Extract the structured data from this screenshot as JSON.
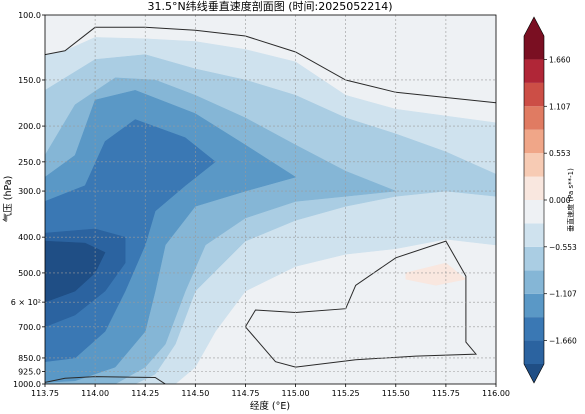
{
  "chart_data": {
    "type": "heatmap",
    "subtype": "filled-contour-cross-section",
    "title": "31.5°N纬线垂直速度剖面图 (时间:2025052214)",
    "xlabel": "经度 (°E)",
    "ylabel": "气压 (hPa)",
    "xlim": [
      113.75,
      116.0
    ],
    "ylim": [
      1000,
      100
    ],
    "y_scale": "log",
    "y_inverted": true,
    "grid": true,
    "x_ticks": [
      113.75,
      114.0,
      114.25,
      114.5,
      114.75,
      115.0,
      115.25,
      115.5,
      115.75,
      116.0
    ],
    "x_tick_labels": [
      "113.75",
      "114.00",
      "114.25",
      "114.50",
      "114.75",
      "115.00",
      "115.25",
      "115.50",
      "115.75",
      "116.00"
    ],
    "y_ticks": [
      100,
      150,
      200,
      250,
      300,
      400,
      500,
      600,
      700,
      850,
      925,
      1000
    ],
    "y_tick_labels": [
      "100.0",
      "150.0",
      "200.0",
      "250.0",
      "300.0",
      "400.0",
      "500.0",
      "6 × 10²",
      "700.0",
      "850.0",
      "925.0",
      "1000.0"
    ],
    "colorbar": {
      "label": "垂直速度 (Pa s**-1)",
      "ticks": [
        1.66,
        1.107,
        0.553,
        0.0,
        -0.553,
        -1.107,
        -1.66
      ],
      "tick_labels": [
        "1.660",
        "1.107",
        "0.553",
        "0.000",
        "−0.553",
        "−1.107",
        "−1.660"
      ],
      "vmin": -1.937,
      "vmax": 1.937,
      "levels": [
        -1.937,
        -1.66,
        -1.383,
        -1.107,
        -0.83,
        -0.553,
        -0.277,
        0.0,
        0.277,
        0.553,
        0.83,
        1.107,
        1.383,
        1.66,
        1.937
      ],
      "colors": [
        "#1f4e85",
        "#2b63a0",
        "#3a78b4",
        "#5a98c6",
        "#85b6d6",
        "#aacde3",
        "#cfe2ee",
        "#eef1f4",
        "#f9e7df",
        "#f7cbb4",
        "#f0a688",
        "#e07b62",
        "#cc4e46",
        "#b02637",
        "#7a0f22"
      ],
      "extend": "both"
    },
    "zero_contour_lines": true,
    "regions": [
      {
        "name": "upper-positive-band",
        "value": 0.14,
        "points": [
          [
            113.75,
            100
          ],
          [
            113.75,
            128
          ],
          [
            113.8,
            128
          ],
          [
            114.0,
            108
          ],
          [
            114.25,
            108
          ],
          [
            114.5,
            110
          ],
          [
            114.75,
            114
          ],
          [
            115.0,
            126
          ],
          [
            115.25,
            150
          ],
          [
            115.5,
            162
          ],
          [
            116.0,
            173
          ],
          [
            116.0,
            100
          ]
        ]
      },
      {
        "name": "low-level-positive",
        "value": 0.14,
        "points": [
          [
            114.75,
            700
          ],
          [
            114.8,
            630
          ],
          [
            115.0,
            640
          ],
          [
            115.25,
            625
          ],
          [
            115.3,
            540
          ],
          [
            115.5,
            455
          ],
          [
            115.75,
            410
          ],
          [
            115.85,
            510
          ],
          [
            115.85,
            770
          ],
          [
            115.9,
            830
          ],
          [
            115.6,
            840
          ],
          [
            115.3,
            860
          ],
          [
            115.0,
            900
          ],
          [
            114.9,
            870
          ]
        ]
      },
      {
        "name": "surface-positive",
        "value": 0.14,
        "points": [
          [
            113.75,
            990
          ],
          [
            113.75,
            1000
          ],
          [
            114.35,
            1000
          ],
          [
            114.3,
            960
          ],
          [
            114.0,
            955
          ],
          [
            113.85,
            965
          ]
        ]
      },
      {
        "name": "positive-core",
        "value": 0.3,
        "points": [
          [
            115.55,
            500
          ],
          [
            115.75,
            470
          ],
          [
            115.85,
            520
          ],
          [
            115.7,
            540
          ],
          [
            115.55,
            520
          ]
        ]
      },
      {
        "name": "negative-l1",
        "value": -0.14,
        "points": [
          [
            113.75,
            128
          ],
          [
            113.85,
            125
          ],
          [
            114.0,
            115
          ],
          [
            114.25,
            116
          ],
          [
            114.5,
            118
          ],
          [
            114.75,
            124
          ],
          [
            115.0,
            134
          ],
          [
            115.25,
            165
          ],
          [
            115.5,
            180
          ],
          [
            116.0,
            196
          ],
          [
            116.0,
            420
          ],
          [
            115.75,
            405
          ],
          [
            115.5,
            430
          ],
          [
            115.25,
            445
          ],
          [
            115.0,
            480
          ],
          [
            114.75,
            560
          ],
          [
            114.6,
            720
          ],
          [
            114.5,
            900
          ],
          [
            114.4,
            1000
          ],
          [
            113.75,
            1000
          ]
        ]
      },
      {
        "name": "negative-l2",
        "value": -0.42,
        "points": [
          [
            113.75,
            160
          ],
          [
            114.0,
            132
          ],
          [
            114.25,
            128
          ],
          [
            114.5,
            140
          ],
          [
            114.75,
            150
          ],
          [
            115.0,
            165
          ],
          [
            115.25,
            190
          ],
          [
            115.5,
            210
          ],
          [
            115.75,
            235
          ],
          [
            116.0,
            270
          ],
          [
            116.0,
            310
          ],
          [
            115.75,
            300
          ],
          [
            115.5,
            310
          ],
          [
            115.25,
            330
          ],
          [
            115.0,
            360
          ],
          [
            114.75,
            410
          ],
          [
            114.5,
            560
          ],
          [
            114.4,
            780
          ],
          [
            114.3,
            940
          ],
          [
            114.2,
            1000
          ],
          [
            113.75,
            1000
          ]
        ]
      },
      {
        "name": "negative-l3",
        "value": -0.69,
        "points": [
          [
            113.75,
            240
          ],
          [
            113.9,
            175
          ],
          [
            114.1,
            148
          ],
          [
            114.3,
            150
          ],
          [
            114.5,
            165
          ],
          [
            114.75,
            190
          ],
          [
            115.0,
            225
          ],
          [
            115.25,
            265
          ],
          [
            115.5,
            300
          ],
          [
            115.25,
            310
          ],
          [
            115.0,
            320
          ],
          [
            114.75,
            355
          ],
          [
            114.55,
            420
          ],
          [
            114.45,
            560
          ],
          [
            114.35,
            780
          ],
          [
            114.25,
            900
          ],
          [
            114.1,
            1000
          ],
          [
            113.75,
            1000
          ]
        ]
      },
      {
        "name": "negative-l4",
        "value": -0.97,
        "points": [
          [
            113.75,
            275
          ],
          [
            113.9,
            240
          ],
          [
            114.0,
            170
          ],
          [
            114.2,
            160
          ],
          [
            114.5,
            185
          ],
          [
            114.75,
            225
          ],
          [
            115.0,
            275
          ],
          [
            114.75,
            300
          ],
          [
            114.5,
            330
          ],
          [
            114.35,
            420
          ],
          [
            114.3,
            560
          ],
          [
            114.25,
            720
          ],
          [
            114.1,
            900
          ],
          [
            113.9,
            980
          ],
          [
            113.75,
            990
          ]
        ]
      },
      {
        "name": "negative-l5",
        "value": -1.24,
        "points": [
          [
            113.75,
            320
          ],
          [
            113.95,
            290
          ],
          [
            114.05,
            220
          ],
          [
            114.2,
            192
          ],
          [
            114.45,
            215
          ],
          [
            114.6,
            250
          ],
          [
            114.45,
            290
          ],
          [
            114.3,
            340
          ],
          [
            114.25,
            420
          ],
          [
            114.15,
            560
          ],
          [
            114.05,
            720
          ],
          [
            113.9,
            850
          ],
          [
            113.75,
            870
          ]
        ]
      },
      {
        "name": "negative-l6",
        "value": -1.52,
        "points": [
          [
            113.75,
            390
          ],
          [
            114.0,
            380
          ],
          [
            114.15,
            400
          ],
          [
            114.15,
            470
          ],
          [
            114.05,
            560
          ],
          [
            113.9,
            650
          ],
          [
            113.75,
            700
          ]
        ]
      },
      {
        "name": "negative-core",
        "value": -1.8,
        "points": [
          [
            113.75,
            410
          ],
          [
            113.95,
            415
          ],
          [
            114.05,
            440
          ],
          [
            114.0,
            500
          ],
          [
            113.9,
            560
          ],
          [
            113.75,
            600
          ]
        ]
      }
    ],
    "zero_lines": [
      [
        [
          113.75,
          128
        ],
        [
          113.85,
          125
        ],
        [
          114.0,
          108
        ],
        [
          114.25,
          108
        ],
        [
          114.5,
          110
        ],
        [
          114.75,
          114
        ],
        [
          115.0,
          126
        ],
        [
          115.25,
          150
        ],
        [
          115.5,
          162
        ],
        [
          116.0,
          173
        ]
      ],
      [
        [
          114.75,
          700
        ],
        [
          114.8,
          630
        ],
        [
          115.0,
          640
        ],
        [
          115.25,
          625
        ],
        [
          115.3,
          540
        ],
        [
          115.5,
          455
        ],
        [
          115.75,
          410
        ],
        [
          115.85,
          510
        ],
        [
          115.85,
          770
        ],
        [
          115.9,
          830
        ],
        [
          115.6,
          840
        ],
        [
          115.3,
          860
        ],
        [
          115.0,
          900
        ],
        [
          114.9,
          870
        ],
        [
          114.75,
          700
        ]
      ],
      [
        [
          113.75,
          990
        ],
        [
          113.85,
          965
        ],
        [
          114.0,
          955
        ],
        [
          114.3,
          960
        ],
        [
          114.35,
          1000
        ]
      ]
    ]
  }
}
